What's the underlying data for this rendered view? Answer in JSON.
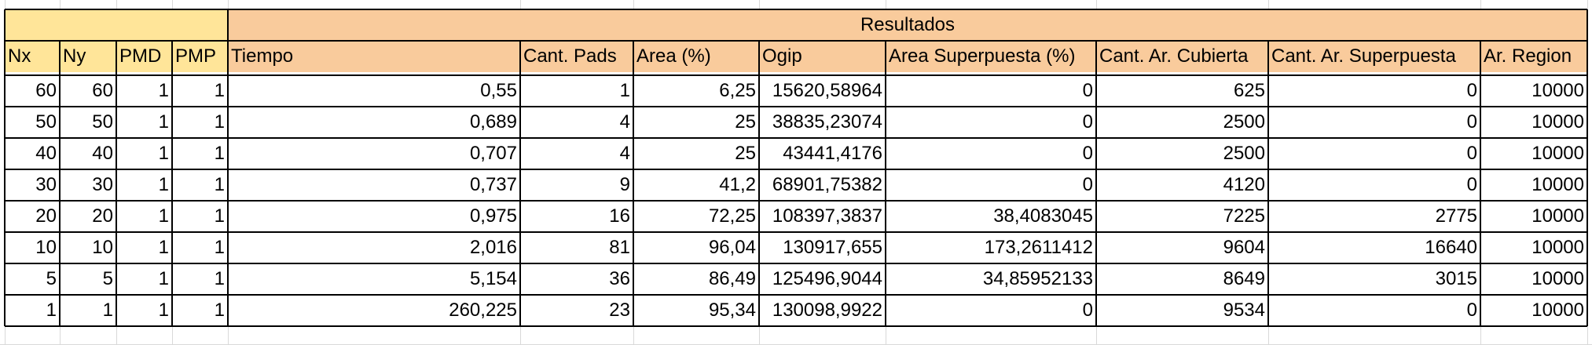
{
  "sheet": {
    "group_header": {
      "label": "Resultados",
      "color": "#f9cb9c"
    },
    "input_header_color": "#ffe599",
    "columns": [
      "Nx",
      "Ny",
      "PMD",
      "PMP",
      "Tiempo",
      "Cant. Pads",
      "Area (%)",
      "Ogip",
      "Area Superpuesta (%)",
      "Cant. Ar. Cubierta",
      "Cant. Ar. Superpuesta",
      "Ar. Region"
    ],
    "rows": [
      [
        "60",
        "60",
        "1",
        "1",
        "0,55",
        "1",
        "6,25",
        "15620,58964",
        "0",
        "625",
        "0",
        "10000"
      ],
      [
        "50",
        "50",
        "1",
        "1",
        "0,689",
        "4",
        "25",
        "38835,23074",
        "0",
        "2500",
        "0",
        "10000"
      ],
      [
        "40",
        "40",
        "1",
        "1",
        "0,707",
        "4",
        "25",
        "43441,4176",
        "0",
        "2500",
        "0",
        "10000"
      ],
      [
        "30",
        "30",
        "1",
        "1",
        "0,737",
        "9",
        "41,2",
        "68901,75382",
        "0",
        "4120",
        "0",
        "10000"
      ],
      [
        "20",
        "20",
        "1",
        "1",
        "0,975",
        "16",
        "72,25",
        "108397,3837",
        "38,4083045",
        "7225",
        "2775",
        "10000"
      ],
      [
        "10",
        "10",
        "1",
        "1",
        "2,016",
        "81",
        "96,04",
        "130917,655",
        "173,2611412",
        "9604",
        "16640",
        "10000"
      ],
      [
        "5",
        "5",
        "1",
        "1",
        "5,154",
        "36",
        "86,49",
        "125496,9044",
        "34,85952133",
        "8649",
        "3015",
        "10000"
      ],
      [
        "1",
        "1",
        "1",
        "1",
        "260,225",
        "23",
        "95,34",
        "130098,9922",
        "0",
        "9534",
        "0",
        "10000"
      ]
    ]
  }
}
